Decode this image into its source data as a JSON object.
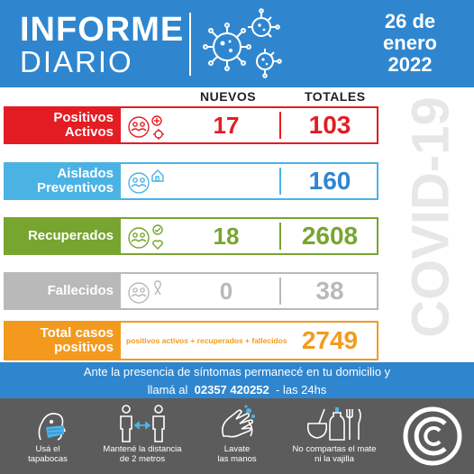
{
  "header": {
    "title_line1": "INFORME",
    "title_line2": "DIARIO",
    "date_line1": "26 de",
    "date_line2": "enero",
    "date_line3": "2022",
    "bg_color": "#2f86cf"
  },
  "side_label": "COVID-19",
  "columns": {
    "new": "NUEVOS",
    "total": "TOTALES"
  },
  "rows": {
    "positivos": {
      "label_line1": "Positivos",
      "label_line2": "Activos",
      "new": "17",
      "total": "103",
      "color": "#e31d23"
    },
    "aislados": {
      "label_line1": "Aislados",
      "label_line2": "Preventivos",
      "new": "",
      "total": "160",
      "color": "#4bb3e4"
    },
    "recuperados": {
      "label_line1": "Recuperados",
      "new": "18",
      "total": "2608",
      "color": "#77a52f"
    },
    "fallecidos": {
      "label_line1": "Fallecidos",
      "new": "0",
      "total": "38",
      "color": "#b9b9b9"
    },
    "total": {
      "label_line1": "Total casos",
      "label_line2": "positivos",
      "formula": "positivos activos + recuperados + fallecidos",
      "total": "2749",
      "color": "#f39a1e"
    }
  },
  "notice": {
    "line1": "Ante la presencia de síntomas permanecé en tu domicilio y",
    "line2_prefix": "llamá al",
    "phone": "02357 420252",
    "line2_suffix": "- las 24hs"
  },
  "tips": [
    {
      "icon": "face-mask-icon",
      "line1": "Usá el",
      "line2": "tapabocas"
    },
    {
      "icon": "social-distance-icon",
      "line1": "Mantené la distancia",
      "line2": "de 2 metros"
    },
    {
      "icon": "hand-wash-icon",
      "line1": "Lavate",
      "line2": "las manos"
    },
    {
      "icon": "mate-dishes-icon",
      "line1": "No compartas el mate",
      "line2": "ni la vajilla"
    }
  ]
}
